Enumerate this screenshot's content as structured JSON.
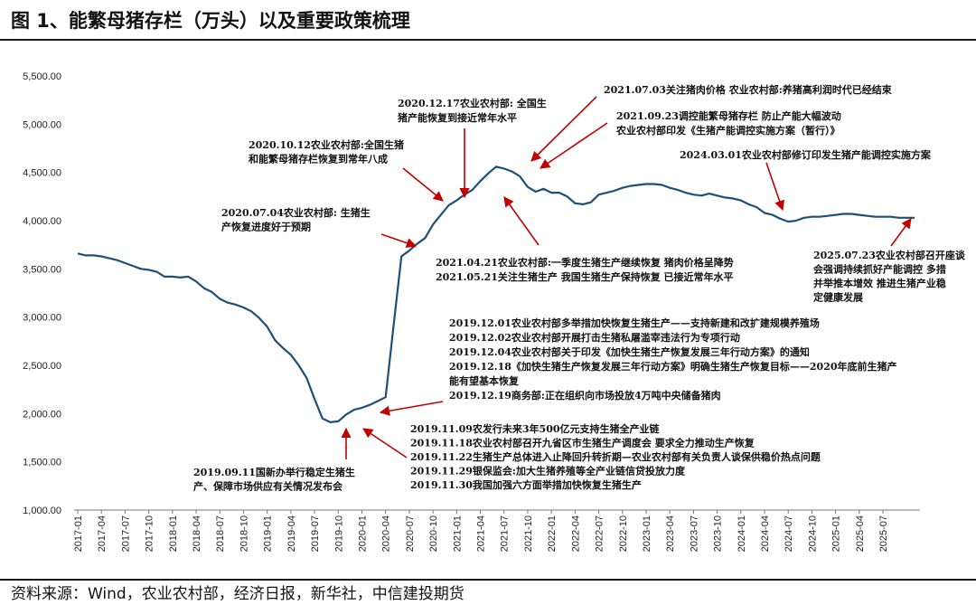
{
  "header": {
    "title": "图 1、能繁母猪存栏（万头）以及重要政策梳理"
  },
  "footer": {
    "source": "资料来源：Wind，农业农村部，经济日报，新华社，中信建投期货"
  },
  "colors": {
    "line": "#1f4e79",
    "arrow": "#c00000",
    "text": "#111111"
  },
  "chart_data": {
    "type": "line",
    "title": "图 1、能繁母猪存栏（万头）以及重要政策梳理",
    "xlabel": "",
    "ylabel": "",
    "ylim": [
      1000,
      5500
    ],
    "yticks": [
      "1,000.00",
      "1,500.00",
      "2,000.00",
      "2,500.00",
      "3,000.00",
      "3,500.00",
      "4,000.00",
      "4,500.00",
      "5,000.00",
      "5,500.00"
    ],
    "xticks": [
      "2017-01",
      "2017-04",
      "2017-07",
      "2017-10",
      "2018-01",
      "2018-04",
      "2018-07",
      "2018-10",
      "2019-01",
      "2019-04",
      "2019-07",
      "2019-10",
      "2020-01",
      "2020-04",
      "2020-07",
      "2020-10",
      "2021-01",
      "2021-04",
      "2021-07",
      "2021-10",
      "2022-01",
      "2022-04",
      "2022-07",
      "2022-10",
      "2023-01",
      "2023-04",
      "2023-07",
      "2023-10",
      "2024-01",
      "2024-04",
      "2024-07",
      "2024-10",
      "2025-01",
      "2025-04",
      "2025-07"
    ],
    "grid": false,
    "series": [
      {
        "values": [
          3660,
          3640,
          3640,
          3630,
          3610,
          3590,
          3560,
          3530,
          3500,
          3490,
          3470,
          3420,
          3420,
          3410,
          3420,
          3370,
          3300,
          3260,
          3190,
          3150,
          3130,
          3100,
          3060,
          2990,
          2900,
          2760,
          2680,
          2610,
          2500,
          2370,
          2150,
          1950,
          1910,
          1920,
          1990,
          2040,
          2060,
          2090,
          2130,
          2170,
          2900,
          3630,
          3690,
          3760,
          3820,
          3960,
          4060,
          4160,
          4210,
          4270,
          4320,
          4410,
          4490,
          4560,
          4540,
          4510,
          4460,
          4350,
          4300,
          4330,
          4290,
          4290,
          4250,
          4180,
          4170,
          4190,
          4270,
          4290,
          4310,
          4340,
          4360,
          4370,
          4380,
          4380,
          4370,
          4340,
          4320,
          4290,
          4270,
          4260,
          4280,
          4260,
          4240,
          4230,
          4210,
          4170,
          4140,
          4080,
          4060,
          4020,
          3990,
          4000,
          4030,
          4040,
          4040,
          4050,
          4060,
          4070,
          4070,
          4060,
          4050,
          4040,
          4040,
          4040,
          4030,
          4030,
          4030
        ]
      }
    ],
    "annotations": [
      {
        "lines": [
          "2019.09.11国新办举行稳定生猪生",
          "产、保障市场供应有关情况发布会"
        ],
        "date": "2019-09"
      },
      {
        "lines": [
          "2019.11.09农发行未来3年500亿元支持生猪全产业链",
          "2019.11.18农业农村部召开九省区市生猪生产调度会 要求全力推动生产恢复",
          "2019.11.22生猪生产总体进入止降回升转折期—农业农村部有关负责人谈保供稳价热点问题",
          "2019.11.29银保监会:加大生猪养殖等全产业链信贷投放力度",
          "2019.11.30我国加强六方面举措加快恢复生猪生产"
        ],
        "date": "2019-11"
      },
      {
        "lines": [
          "2019.12.01农业农村部多举措加快恢复生猪生产——支持新建和改扩建规模养殖场",
          "2019.12.02农业农村部开展打击生猪私屠滥宰违法行为专项行动",
          "2019.12.04农业农村部关于印发《加快生猪生产恢复发展三年行动方案》的通知",
          "2019.12.18《加快生猪生产恢复发展三年行动方案》明确生猪生产恢复目标——2020年底前生猪产",
          "能有望基本恢复",
          "2019.12.19商务部:正在组织向市场投放4万吨中央储备猪肉"
        ],
        "date": "2019-12"
      },
      {
        "lines": [
          "2020.07.04农业农村部: 生猪生",
          "产恢复进度好于预期"
        ],
        "date": "2020-07"
      },
      {
        "lines": [
          "2020.10.12农业农村部:全国生猪",
          "和能繁母猪存栏恢复到常年八成"
        ],
        "date": "2020-10"
      },
      {
        "lines": [
          "2020.12.17农业农村部: 全国生",
          "猪产能恢复到接近常年水平"
        ],
        "date": "2020-12"
      },
      {
        "lines": [
          "2021.04.21农业农村部:一季度生猪生产继续恢复 猪肉价格呈降势",
          "2021.05.21关注生猪生产 我国生猪生产保持恢复 已接近常年水平"
        ],
        "date": "2021-05"
      },
      {
        "lines": [
          "2021.07.03关注猪肉价格 农业农村部:养猪高利润时代已经结束"
        ],
        "date": "2021-07"
      },
      {
        "lines": [
          "2021.09.23调控能繁母猪存栏 防止产能大幅波动",
          "农业农村部印发《生猪产能调控实施方案（暂行）》"
        ],
        "date": "2021-09"
      },
      {
        "lines": [
          "2024.03.01农业农村部修订印发生猪产能调控实施方案"
        ],
        "date": "2024-03"
      },
      {
        "lines": [
          "2025.07.23农业农村部召开座谈",
          "会强调持续抓好产能调控 多措",
          "并举推本增效 推进生猪产业稳",
          "定健康发展"
        ],
        "date": "2025-07"
      }
    ]
  }
}
